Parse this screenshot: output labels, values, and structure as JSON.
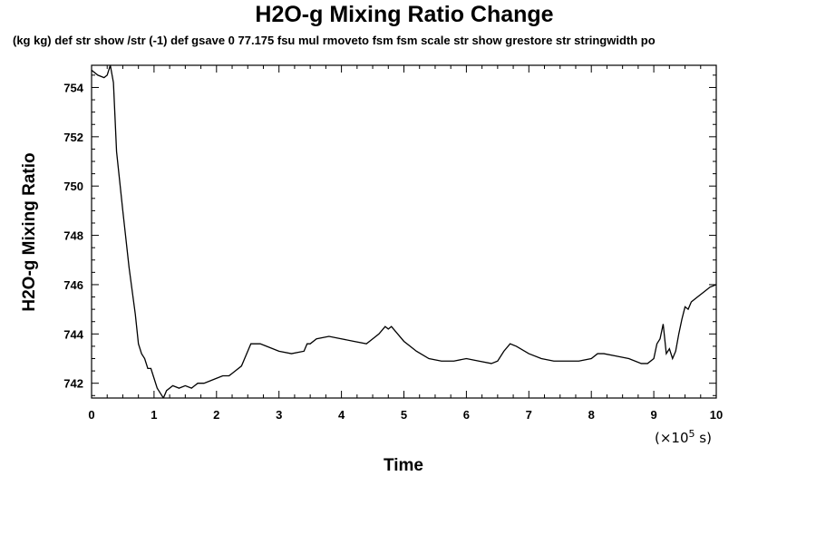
{
  "chart_data": {
    "type": "line",
    "title": "H2O-g Mixing Ratio Change",
    "subtitle": "(kg kg) def str show /str (-1) def gsave 0 77.175 fsu mul rmoveto fsm fsm scale str show grestore str stringwidth po",
    "xlabel": "Time",
    "ylabel": "H2O-g Mixing Ratio",
    "x_units_prefix": "(×10",
    "x_units_exponent": "5",
    "x_units_suffix": " s)",
    "xlim": [
      0,
      10
    ],
    "ylim": [
      741.4,
      754.9
    ],
    "x_ticks": [
      "0",
      "1",
      "2",
      "3",
      "4",
      "5",
      "6",
      "7",
      "8",
      "9",
      "10"
    ],
    "y_ticks": [
      "742",
      "744",
      "746",
      "748",
      "750",
      "752",
      "754"
    ],
    "grid": false,
    "series": [
      {
        "x": [
          0,
          0.1,
          0.2,
          0.25,
          0.3,
          0.35,
          0.4,
          0.5,
          0.6,
          0.7,
          0.75,
          0.8,
          0.85,
          0.9,
          0.95,
          1.0,
          1.05,
          1.1,
          1.15,
          1.2,
          1.3,
          1.4,
          1.5,
          1.6,
          1.65,
          1.7,
          1.8,
          1.9,
          2.0,
          2.1,
          2.2,
          2.3,
          2.4,
          2.45,
          2.55,
          2.7,
          2.8,
          3.0,
          3.2,
          3.4,
          3.45,
          3.5,
          3.6,
          3.8,
          4.0,
          4.2,
          4.4,
          4.5,
          4.6,
          4.7,
          4.75,
          4.8,
          4.9,
          5.0,
          5.2,
          5.4,
          5.6,
          5.8,
          6.0,
          6.2,
          6.4,
          6.5,
          6.6,
          6.7,
          6.8,
          7.0,
          7.2,
          7.4,
          7.6,
          7.8,
          8.0,
          8.1,
          8.2,
          8.4,
          8.6,
          8.8,
          8.9,
          9.0,
          9.05,
          9.1,
          9.15,
          9.2,
          9.25,
          9.3,
          9.35,
          9.4,
          9.45,
          9.5,
          9.55,
          9.6,
          9.7,
          9.8,
          9.9,
          10.0
        ],
        "y": [
          754.7,
          754.5,
          754.4,
          754.5,
          754.9,
          754.2,
          751.4,
          749.0,
          746.7,
          744.8,
          743.6,
          743.2,
          743.0,
          742.6,
          742.6,
          742.2,
          741.8,
          741.6,
          741.4,
          741.7,
          741.9,
          741.8,
          741.9,
          741.8,
          741.9,
          742.0,
          742.0,
          742.1,
          742.2,
          742.3,
          742.3,
          742.5,
          742.7,
          743.0,
          743.6,
          743.6,
          743.5,
          743.3,
          743.2,
          743.3,
          743.6,
          743.6,
          743.8,
          743.9,
          743.8,
          743.7,
          743.6,
          743.8,
          744.0,
          744.3,
          744.2,
          744.3,
          744.0,
          743.7,
          743.3,
          743.0,
          742.9,
          742.9,
          743.0,
          742.9,
          742.8,
          742.9,
          743.3,
          743.6,
          743.5,
          743.2,
          743.0,
          742.9,
          742.9,
          742.9,
          743.0,
          743.2,
          743.2,
          743.1,
          743.0,
          742.8,
          742.8,
          743.0,
          743.6,
          743.8,
          744.4,
          743.2,
          743.4,
          743.0,
          743.3,
          744.0,
          744.6,
          745.1,
          745.0,
          745.3,
          745.5,
          745.7,
          745.9,
          746.0
        ]
      }
    ]
  }
}
